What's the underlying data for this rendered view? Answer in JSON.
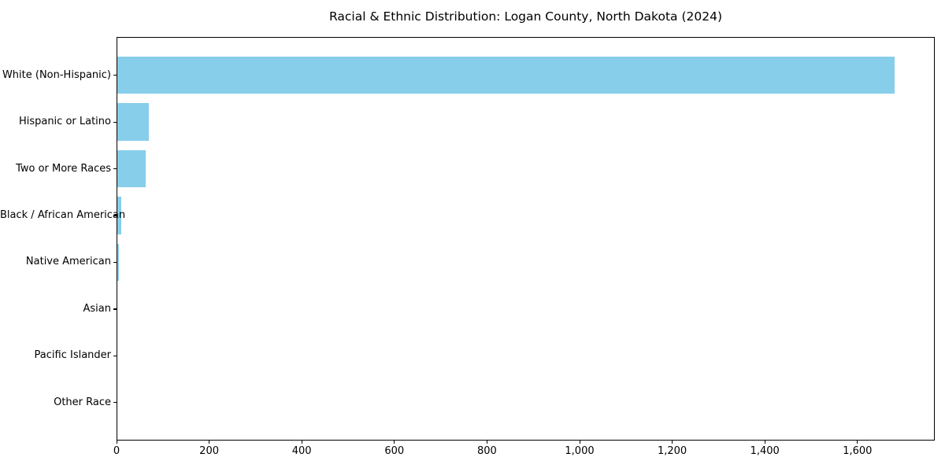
{
  "title": "Racial & Ethnic Distribution: Logan County, North Dakota (2024)",
  "colors": {
    "bar": "#87CEEB",
    "axis": "#000000",
    "background": "#ffffff",
    "text": "#000000"
  },
  "chart_data": {
    "type": "bar",
    "orientation": "horizontal",
    "title": "Racial & Ethnic Distribution: Logan County, North Dakota (2024)",
    "xlabel": "",
    "ylabel": "",
    "categories": [
      "White (Non-Hispanic)",
      "Hispanic or Latino",
      "Two or More Races",
      "Black / African American",
      "Native American",
      "Asian",
      "Pacific Islander",
      "Other Race"
    ],
    "values": [
      1682,
      69,
      62,
      8,
      3,
      0,
      0,
      0
    ],
    "bar_color": "#87CEEB",
    "xlim": [
      0,
      1767
    ],
    "x_ticks": [
      0,
      200,
      400,
      600,
      800,
      1000,
      1200,
      1400,
      1600
    ],
    "x_tick_labels": [
      "0",
      "200",
      "400",
      "600",
      "800",
      "1,000",
      "1,200",
      "1,400",
      "1,600"
    ],
    "grid": false,
    "legend_position": "none"
  }
}
